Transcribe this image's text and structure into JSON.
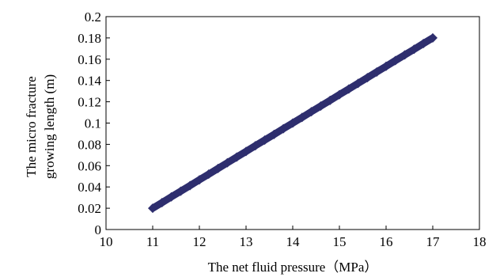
{
  "chart_data": {
    "type": "scatter",
    "title": "",
    "xlabel": "The net fluid pressure（MPa）",
    "ylabel": [
      "The micro fracture",
      "growing length (m)"
    ],
    "xlim": [
      10,
      18
    ],
    "ylim": [
      0,
      0.2
    ],
    "x_ticks": [
      "10",
      "11",
      "12",
      "13",
      "14",
      "15",
      "16",
      "17",
      "18"
    ],
    "y_ticks": [
      "0",
      "0.02",
      "0.04",
      "0.06",
      "0.08",
      "0.1",
      "0.12",
      "0.14",
      "0.16",
      "0.18",
      "0.2"
    ],
    "grid": false,
    "legend": "none",
    "marker": "diamond",
    "marker_color": "#2e2e6e",
    "series": [
      {
        "x": [
          11.0,
          11.2,
          11.4,
          11.6,
          11.8,
          12.0,
          12.2,
          12.4,
          12.6,
          12.8,
          13.0,
          13.2,
          13.4,
          13.6,
          13.8,
          14.0,
          14.2,
          14.4,
          14.6,
          14.8,
          15.0,
          15.2,
          15.4,
          15.6,
          15.8,
          16.0,
          16.2,
          16.4,
          16.6,
          16.8,
          17.0
        ],
        "y": [
          0.02,
          0.0253,
          0.0307,
          0.036,
          0.0413,
          0.0467,
          0.052,
          0.0573,
          0.0627,
          0.068,
          0.0733,
          0.0787,
          0.084,
          0.0893,
          0.0947,
          0.1,
          0.1053,
          0.1107,
          0.116,
          0.1213,
          0.1267,
          0.132,
          0.1373,
          0.1427,
          0.148,
          0.1533,
          0.1587,
          0.164,
          0.1693,
          0.1747,
          0.18
        ]
      }
    ]
  }
}
